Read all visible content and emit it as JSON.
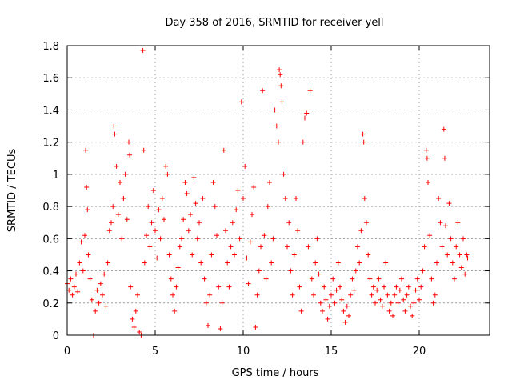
{
  "chart_data": {
    "type": "scatter",
    "title": "Day 358 of 2016, SRMTID for receiver yell",
    "xlabel": "GPS time / hours",
    "ylabel": "SRMTID / TECUs",
    "xlim": [
      0,
      24
    ],
    "ylim": [
      0,
      1.8
    ],
    "x_ticks": [
      0,
      5,
      10,
      15,
      20
    ],
    "y_ticks": [
      0,
      0.2,
      0.4,
      0.6,
      0.8,
      1,
      1.2,
      1.4,
      1.6,
      1.8
    ],
    "x_tick_labels": [
      "0",
      "5",
      "10",
      "15",
      "20"
    ],
    "y_tick_labels": [
      "0",
      "0.2",
      "0.4",
      "0.6",
      "0.8",
      "1",
      "1.2",
      "1.4",
      "1.6",
      "1.8"
    ],
    "grid": true,
    "marker": "+",
    "series_color": "#ff0000",
    "series": [
      {
        "name": "SRMTID",
        "points": [
          [
            0.0,
            0.32
          ],
          [
            0.1,
            0.28
          ],
          [
            0.2,
            0.35
          ],
          [
            0.3,
            0.25
          ],
          [
            0.4,
            0.3
          ],
          [
            0.5,
            0.38
          ],
          [
            0.6,
            0.27
          ],
          [
            0.7,
            0.45
          ],
          [
            0.8,
            0.58
          ],
          [
            0.9,
            0.4
          ],
          [
            1.0,
            0.62
          ],
          [
            1.05,
            1.15
          ],
          [
            1.1,
            0.92
          ],
          [
            1.15,
            0.78
          ],
          [
            1.2,
            0.5
          ],
          [
            1.3,
            0.35
          ],
          [
            1.4,
            0.22
          ],
          [
            1.5,
            0.0
          ],
          [
            1.6,
            0.15
          ],
          [
            1.7,
            0.28
          ],
          [
            1.8,
            0.2
          ],
          [
            1.9,
            0.32
          ],
          [
            2.0,
            0.25
          ],
          [
            2.1,
            0.38
          ],
          [
            2.2,
            0.18
          ],
          [
            2.3,
            0.45
          ],
          [
            2.4,
            0.65
          ],
          [
            2.5,
            0.7
          ],
          [
            2.6,
            0.8
          ],
          [
            2.65,
            1.3
          ],
          [
            2.7,
            1.25
          ],
          [
            2.8,
            1.05
          ],
          [
            2.9,
            0.75
          ],
          [
            3.0,
            0.95
          ],
          [
            3.1,
            0.6
          ],
          [
            3.2,
            0.85
          ],
          [
            3.3,
            1.0
          ],
          [
            3.4,
            0.72
          ],
          [
            3.5,
            1.2
          ],
          [
            3.55,
            1.12
          ],
          [
            3.6,
            0.3
          ],
          [
            3.7,
            0.1
          ],
          [
            3.8,
            0.05
          ],
          [
            3.9,
            0.15
          ],
          [
            4.0,
            0.25
          ],
          [
            4.1,
            0.02
          ],
          [
            4.2,
            0.0
          ],
          [
            4.3,
            1.77
          ],
          [
            4.35,
            1.15
          ],
          [
            4.4,
            0.45
          ],
          [
            4.5,
            0.62
          ],
          [
            4.6,
            0.8
          ],
          [
            4.7,
            0.55
          ],
          [
            4.8,
            0.7
          ],
          [
            4.9,
            0.9
          ],
          [
            5.0,
            0.65
          ],
          [
            5.1,
            0.48
          ],
          [
            5.2,
            0.78
          ],
          [
            5.3,
            0.6
          ],
          [
            5.4,
            0.85
          ],
          [
            5.5,
            0.72
          ],
          [
            5.6,
            1.05
          ],
          [
            5.7,
            1.0
          ],
          [
            5.8,
            0.5
          ],
          [
            5.9,
            0.35
          ],
          [
            6.0,
            0.25
          ],
          [
            6.1,
            0.15
          ],
          [
            6.2,
            0.3
          ],
          [
            6.3,
            0.42
          ],
          [
            6.4,
            0.55
          ],
          [
            6.5,
            0.6
          ],
          [
            6.6,
            0.72
          ],
          [
            6.7,
            0.95
          ],
          [
            6.8,
            0.88
          ],
          [
            6.9,
            0.65
          ],
          [
            7.0,
            0.75
          ],
          [
            7.1,
            0.5
          ],
          [
            7.2,
            0.98
          ],
          [
            7.3,
            0.82
          ],
          [
            7.4,
            0.6
          ],
          [
            7.5,
            0.7
          ],
          [
            7.6,
            0.45
          ],
          [
            7.7,
            0.85
          ],
          [
            7.8,
            0.35
          ],
          [
            7.9,
            0.2
          ],
          [
            8.0,
            0.06
          ],
          [
            8.1,
            0.25
          ],
          [
            8.2,
            0.5
          ],
          [
            8.3,
            0.95
          ],
          [
            8.4,
            0.8
          ],
          [
            8.5,
            0.62
          ],
          [
            8.6,
            0.3
          ],
          [
            8.7,
            0.04
          ],
          [
            8.8,
            0.2
          ],
          [
            8.9,
            1.15
          ],
          [
            9.0,
            0.65
          ],
          [
            9.1,
            0.45
          ],
          [
            9.2,
            0.3
          ],
          [
            9.3,
            0.55
          ],
          [
            9.4,
            0.7
          ],
          [
            9.5,
            0.5
          ],
          [
            9.6,
            0.78
          ],
          [
            9.7,
            0.9
          ],
          [
            9.8,
            0.6
          ],
          [
            9.9,
            1.45
          ],
          [
            10.0,
            0.85
          ],
          [
            10.1,
            1.05
          ],
          [
            10.2,
            0.48
          ],
          [
            10.3,
            0.32
          ],
          [
            10.4,
            0.58
          ],
          [
            10.5,
            0.75
          ],
          [
            10.6,
            0.92
          ],
          [
            10.7,
            0.05
          ],
          [
            10.8,
            0.25
          ],
          [
            10.9,
            0.4
          ],
          [
            11.0,
            0.55
          ],
          [
            11.1,
            1.52
          ],
          [
            11.2,
            0.62
          ],
          [
            11.3,
            0.35
          ],
          [
            11.4,
            0.8
          ],
          [
            11.5,
            0.95
          ],
          [
            11.6,
            0.45
          ],
          [
            11.7,
            0.6
          ],
          [
            11.8,
            1.4
          ],
          [
            11.9,
            1.3
          ],
          [
            12.0,
            1.2
          ],
          [
            12.05,
            1.65
          ],
          [
            12.1,
            1.62
          ],
          [
            12.15,
            1.55
          ],
          [
            12.2,
            1.45
          ],
          [
            12.3,
            1.0
          ],
          [
            12.4,
            0.85
          ],
          [
            12.5,
            0.55
          ],
          [
            12.6,
            0.7
          ],
          [
            12.7,
            0.4
          ],
          [
            12.8,
            0.25
          ],
          [
            12.9,
            0.5
          ],
          [
            13.0,
            0.85
          ],
          [
            13.1,
            0.65
          ],
          [
            13.2,
            0.3
          ],
          [
            13.3,
            0.15
          ],
          [
            13.4,
            1.2
          ],
          [
            13.5,
            1.35
          ],
          [
            13.6,
            1.38
          ],
          [
            13.7,
            0.55
          ],
          [
            13.8,
            1.52
          ],
          [
            13.9,
            0.35
          ],
          [
            14.0,
            0.25
          ],
          [
            14.1,
            0.45
          ],
          [
            14.2,
            0.6
          ],
          [
            14.3,
            0.38
          ],
          [
            14.4,
            0.2
          ],
          [
            14.5,
            0.15
          ],
          [
            14.6,
            0.3
          ],
          [
            14.7,
            0.22
          ],
          [
            14.8,
            0.1
          ],
          [
            14.9,
            0.18
          ],
          [
            15.0,
            0.25
          ],
          [
            15.1,
            0.35
          ],
          [
            15.2,
            0.2
          ],
          [
            15.3,
            0.28
          ],
          [
            15.4,
            0.45
          ],
          [
            15.5,
            0.3
          ],
          [
            15.6,
            0.22
          ],
          [
            15.7,
            0.15
          ],
          [
            15.8,
            0.08
          ],
          [
            15.9,
            0.18
          ],
          [
            16.0,
            0.12
          ],
          [
            16.1,
            0.25
          ],
          [
            16.2,
            0.35
          ],
          [
            16.3,
            0.28
          ],
          [
            16.4,
            0.4
          ],
          [
            16.5,
            0.55
          ],
          [
            16.6,
            0.45
          ],
          [
            16.7,
            0.65
          ],
          [
            16.8,
            1.25
          ],
          [
            16.85,
            1.2
          ],
          [
            16.9,
            0.85
          ],
          [
            17.0,
            0.7
          ],
          [
            17.1,
            0.5
          ],
          [
            17.2,
            0.35
          ],
          [
            17.3,
            0.25
          ],
          [
            17.4,
            0.3
          ],
          [
            17.5,
            0.2
          ],
          [
            17.6,
            0.28
          ],
          [
            17.7,
            0.35
          ],
          [
            17.8,
            0.22
          ],
          [
            17.9,
            0.18
          ],
          [
            18.0,
            0.3
          ],
          [
            18.1,
            0.45
          ],
          [
            18.2,
            0.25
          ],
          [
            18.3,
            0.15
          ],
          [
            18.4,
            0.2
          ],
          [
            18.5,
            0.12
          ],
          [
            18.6,
            0.25
          ],
          [
            18.7,
            0.3
          ],
          [
            18.8,
            0.2
          ],
          [
            18.9,
            0.28
          ],
          [
            19.0,
            0.35
          ],
          [
            19.1,
            0.22
          ],
          [
            19.2,
            0.15
          ],
          [
            19.3,
            0.25
          ],
          [
            19.4,
            0.3
          ],
          [
            19.5,
            0.18
          ],
          [
            19.6,
            0.12
          ],
          [
            19.7,
            0.2
          ],
          [
            19.8,
            0.28
          ],
          [
            19.9,
            0.35
          ],
          [
            20.0,
            0.22
          ],
          [
            20.1,
            0.3
          ],
          [
            20.2,
            0.4
          ],
          [
            20.3,
            0.55
          ],
          [
            20.4,
            1.15
          ],
          [
            20.45,
            1.1
          ],
          [
            20.5,
            0.95
          ],
          [
            20.6,
            0.62
          ],
          [
            20.7,
            0.35
          ],
          [
            20.8,
            0.2
          ],
          [
            20.9,
            0.25
          ],
          [
            21.0,
            0.45
          ],
          [
            21.1,
            0.85
          ],
          [
            21.2,
            0.7
          ],
          [
            21.3,
            0.55
          ],
          [
            21.4,
            1.28
          ],
          [
            21.45,
            1.1
          ],
          [
            21.5,
            0.68
          ],
          [
            21.6,
            0.5
          ],
          [
            21.7,
            0.82
          ],
          [
            21.8,
            0.6
          ],
          [
            21.9,
            0.45
          ],
          [
            22.0,
            0.35
          ],
          [
            22.1,
            0.55
          ],
          [
            22.2,
            0.7
          ],
          [
            22.3,
            0.5
          ],
          [
            22.4,
            0.42
          ],
          [
            22.5,
            0.6
          ],
          [
            22.6,
            0.38
          ],
          [
            22.7,
            0.5
          ],
          [
            22.75,
            0.48
          ]
        ]
      }
    ]
  }
}
